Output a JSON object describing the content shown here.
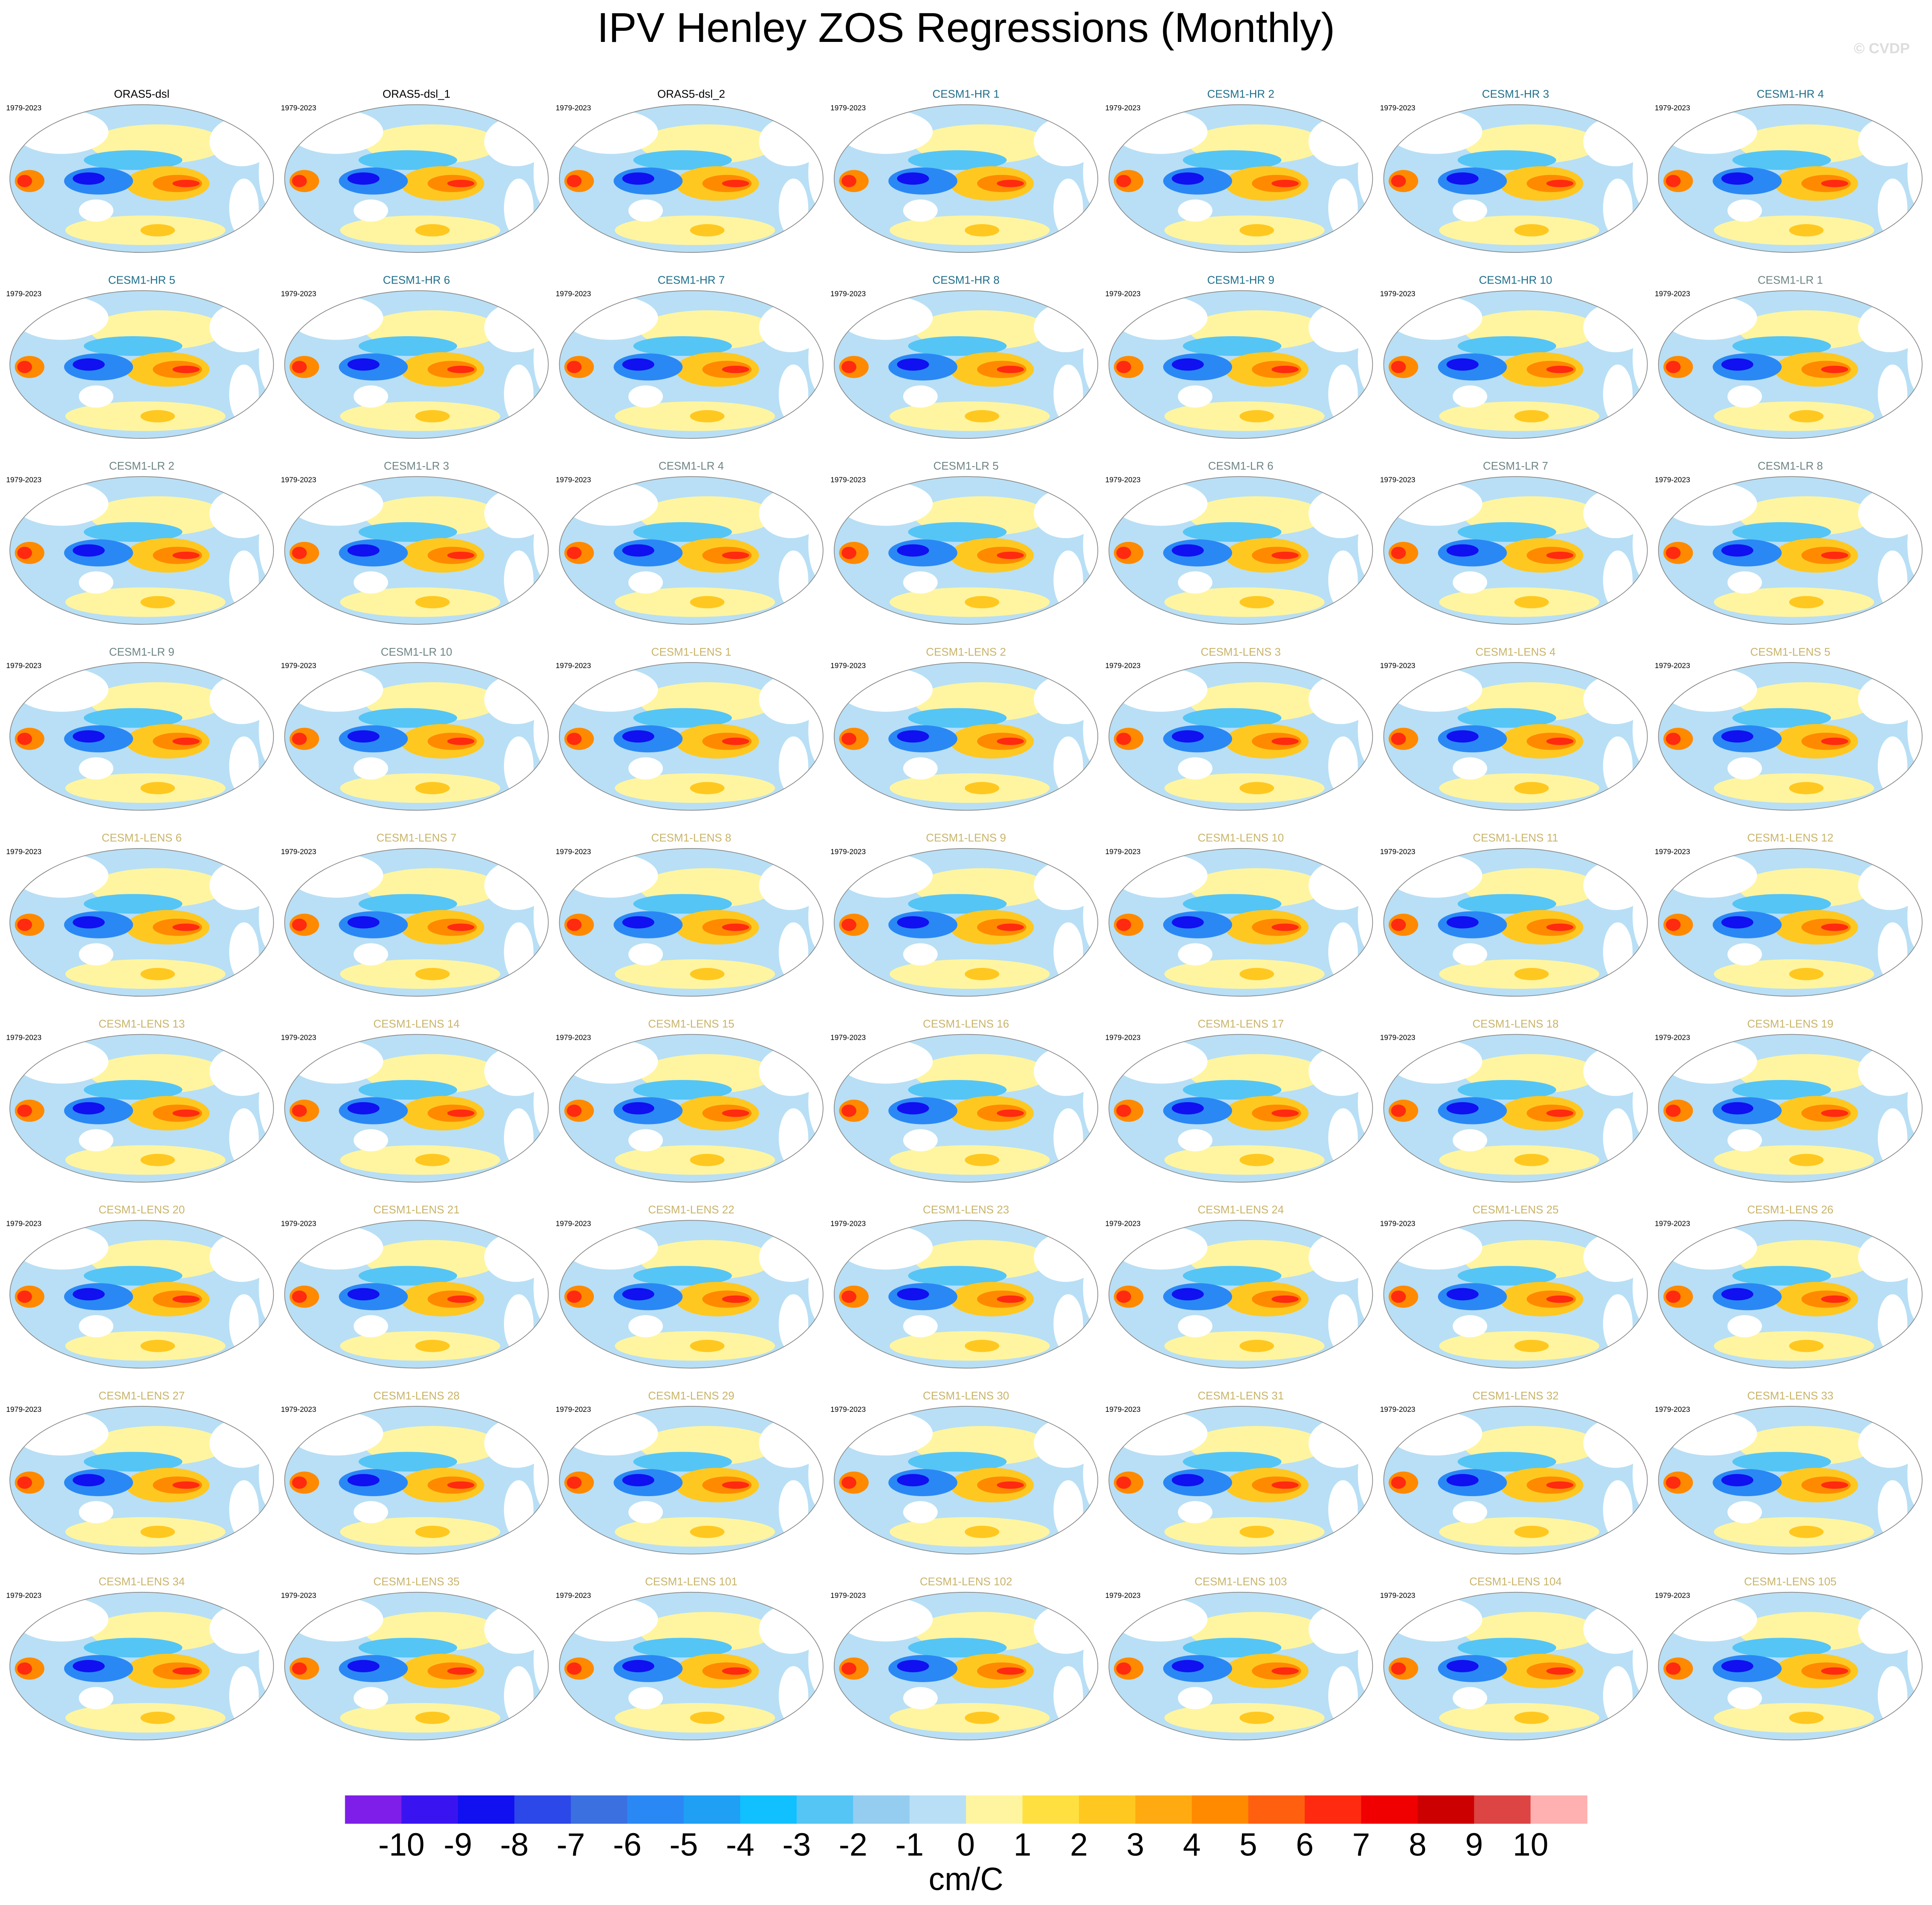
{
  "title": "IPV Henley ZOS Regressions (Monthly)",
  "watermark": "© CVDP",
  "panels": [
    {
      "title": "ORAS5-dsl",
      "period": "1979-2023",
      "color": "#000000"
    },
    {
      "title": "ORAS5-dsl_1",
      "period": "1979-2023",
      "color": "#000000"
    },
    {
      "title": "ORAS5-dsl_2",
      "period": "1979-2023",
      "color": "#000000"
    },
    {
      "title": "CESM1-HR 1",
      "period": "1979-2023",
      "color": "#1f6f8b"
    },
    {
      "title": "CESM1-HR 2",
      "period": "1979-2023",
      "color": "#1f6f8b"
    },
    {
      "title": "CESM1-HR 3",
      "period": "1979-2023",
      "color": "#1f6f8b"
    },
    {
      "title": "CESM1-HR 4",
      "period": "1979-2023",
      "color": "#1f6f8b"
    },
    {
      "title": "CESM1-HR 5",
      "period": "1979-2023",
      "color": "#1f6f8b"
    },
    {
      "title": "CESM1-HR 6",
      "period": "1979-2023",
      "color": "#1f6f8b"
    },
    {
      "title": "CESM1-HR 7",
      "period": "1979-2023",
      "color": "#1f6f8b"
    },
    {
      "title": "CESM1-HR 8",
      "period": "1979-2023",
      "color": "#1f6f8b"
    },
    {
      "title": "CESM1-HR 9",
      "period": "1979-2023",
      "color": "#1f6f8b"
    },
    {
      "title": "CESM1-HR 10",
      "period": "1979-2023",
      "color": "#1f6f8b"
    },
    {
      "title": "CESM1-LR 1",
      "period": "1979-2023",
      "color": "#6f8585"
    },
    {
      "title": "CESM1-LR 2",
      "period": "1979-2023",
      "color": "#6f8585"
    },
    {
      "title": "CESM1-LR 3",
      "period": "1979-2023",
      "color": "#6f8585"
    },
    {
      "title": "CESM1-LR 4",
      "period": "1979-2023",
      "color": "#6f8585"
    },
    {
      "title": "CESM1-LR 5",
      "period": "1979-2023",
      "color": "#6f8585"
    },
    {
      "title": "CESM1-LR 6",
      "period": "1979-2023",
      "color": "#6f8585"
    },
    {
      "title": "CESM1-LR 7",
      "period": "1979-2023",
      "color": "#6f8585"
    },
    {
      "title": "CESM1-LR 8",
      "period": "1979-2023",
      "color": "#6f8585"
    },
    {
      "title": "CESM1-LR 9",
      "period": "1979-2023",
      "color": "#6f8585"
    },
    {
      "title": "CESM1-LR 10",
      "period": "1979-2023",
      "color": "#6f8585"
    },
    {
      "title": "CESM1-LENS 1",
      "period": "1979-2023",
      "color": "#c9b46a"
    },
    {
      "title": "CESM1-LENS 2",
      "period": "1979-2023",
      "color": "#c9b46a"
    },
    {
      "title": "CESM1-LENS 3",
      "period": "1979-2023",
      "color": "#c9b46a"
    },
    {
      "title": "CESM1-LENS 4",
      "period": "1979-2023",
      "color": "#c9b46a"
    },
    {
      "title": "CESM1-LENS 5",
      "period": "1979-2023",
      "color": "#c9b46a"
    },
    {
      "title": "CESM1-LENS 6",
      "period": "1979-2023",
      "color": "#c9b46a"
    },
    {
      "title": "CESM1-LENS 7",
      "period": "1979-2023",
      "color": "#c9b46a"
    },
    {
      "title": "CESM1-LENS 8",
      "period": "1979-2023",
      "color": "#c9b46a"
    },
    {
      "title": "CESM1-LENS 9",
      "period": "1979-2023",
      "color": "#c9b46a"
    },
    {
      "title": "CESM1-LENS 10",
      "period": "1979-2023",
      "color": "#c9b46a"
    },
    {
      "title": "CESM1-LENS 11",
      "period": "1979-2023",
      "color": "#c9b46a"
    },
    {
      "title": "CESM1-LENS 12",
      "period": "1979-2023",
      "color": "#c9b46a"
    },
    {
      "title": "CESM1-LENS 13",
      "period": "1979-2023",
      "color": "#c9b46a"
    },
    {
      "title": "CESM1-LENS 14",
      "period": "1979-2023",
      "color": "#c9b46a"
    },
    {
      "title": "CESM1-LENS 15",
      "period": "1979-2023",
      "color": "#c9b46a"
    },
    {
      "title": "CESM1-LENS 16",
      "period": "1979-2023",
      "color": "#c9b46a"
    },
    {
      "title": "CESM1-LENS 17",
      "period": "1979-2023",
      "color": "#c9b46a"
    },
    {
      "title": "CESM1-LENS 18",
      "period": "1979-2023",
      "color": "#c9b46a"
    },
    {
      "title": "CESM1-LENS 19",
      "period": "1979-2023",
      "color": "#c9b46a"
    },
    {
      "title": "CESM1-LENS 20",
      "period": "1979-2023",
      "color": "#c9b46a"
    },
    {
      "title": "CESM1-LENS 21",
      "period": "1979-2023",
      "color": "#c9b46a"
    },
    {
      "title": "CESM1-LENS 22",
      "period": "1979-2023",
      "color": "#c9b46a"
    },
    {
      "title": "CESM1-LENS 23",
      "period": "1979-2023",
      "color": "#c9b46a"
    },
    {
      "title": "CESM1-LENS 24",
      "period": "1979-2023",
      "color": "#c9b46a"
    },
    {
      "title": "CESM1-LENS 25",
      "period": "1979-2023",
      "color": "#c9b46a"
    },
    {
      "title": "CESM1-LENS 26",
      "period": "1979-2023",
      "color": "#c9b46a"
    },
    {
      "title": "CESM1-LENS 27",
      "period": "1979-2023",
      "color": "#c9b46a"
    },
    {
      "title": "CESM1-LENS 28",
      "period": "1979-2023",
      "color": "#c9b46a"
    },
    {
      "title": "CESM1-LENS 29",
      "period": "1979-2023",
      "color": "#c9b46a"
    },
    {
      "title": "CESM1-LENS 30",
      "period": "1979-2023",
      "color": "#c9b46a"
    },
    {
      "title": "CESM1-LENS 31",
      "period": "1979-2023",
      "color": "#c9b46a"
    },
    {
      "title": "CESM1-LENS 32",
      "period": "1979-2023",
      "color": "#c9b46a"
    },
    {
      "title": "CESM1-LENS 33",
      "period": "1979-2023",
      "color": "#c9b46a"
    },
    {
      "title": "CESM1-LENS 34",
      "period": "1979-2023",
      "color": "#c9b46a"
    },
    {
      "title": "CESM1-LENS 35",
      "period": "1979-2023",
      "color": "#c9b46a"
    },
    {
      "title": "CESM1-LENS 101",
      "period": "1979-2023",
      "color": "#c9b46a"
    },
    {
      "title": "CESM1-LENS 102",
      "period": "1979-2023",
      "color": "#c9b46a"
    },
    {
      "title": "CESM1-LENS 103",
      "period": "1979-2023",
      "color": "#c9b46a"
    },
    {
      "title": "CESM1-LENS 104",
      "period": "1979-2023",
      "color": "#c9b46a"
    },
    {
      "title": "CESM1-LENS 105",
      "period": "1979-2023",
      "color": "#c9b46a"
    }
  ],
  "colorbar": {
    "label": "cm/C",
    "colors": [
      "#7f1ee8",
      "#3a14f0",
      "#1010f0",
      "#2c48e8",
      "#3a70e0",
      "#2a88f5",
      "#1fa0f5",
      "#10c0ff",
      "#55c5f5",
      "#95cdf0",
      "#b8dff5",
      "#fff5a0",
      "#ffe040",
      "#ffc820",
      "#ffaa10",
      "#ff8a00",
      "#ff6010",
      "#ff2a10",
      "#f00000",
      "#cc0000",
      "#dd4444",
      "#ffb0b0"
    ],
    "ticks": [
      -10,
      -9,
      -8,
      -7,
      -6,
      -5,
      -4,
      -3,
      -2,
      -1,
      0,
      1,
      2,
      3,
      4,
      5,
      6,
      7,
      8,
      9,
      10
    ]
  }
}
